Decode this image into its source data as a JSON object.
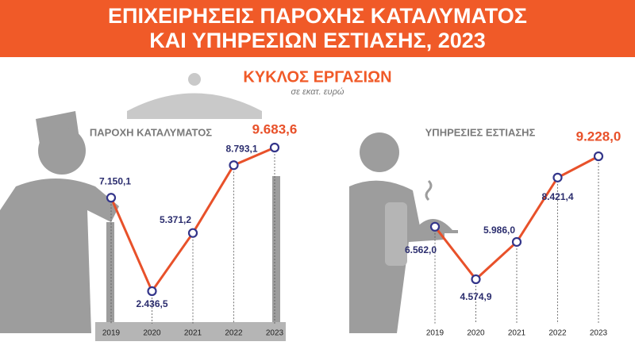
{
  "title": "ΕΠΙΧΕΙΡΗΣΕΙΣ ΠΑΡΟΧΗΣ ΚΑΤΑΛΥΜΑΤΟΣ ΚΑΙ ΥΠΗΡΕΣΙΩΝ ΕΣΤΙΑΣΗΣ, 2023",
  "subtitle": "ΚΥΚΛΟΣ ΕΡΓΑΣΙΩΝ",
  "unit": "σε εκατ. ευρώ",
  "chart_data": [
    {
      "type": "line",
      "title": "ΠΑΡΟΧΗ ΚΑΤΑΛΥΜΑΤΟΣ",
      "categories": [
        "2019",
        "2020",
        "2021",
        "2022",
        "2023"
      ],
      "values": [
        7150.1,
        2436.5,
        5371.2,
        8793.1,
        9683.6
      ],
      "value_labels": [
        "7.150,1",
        "2.436,5",
        "5.371,2",
        "8.793,1",
        "9.683,6"
      ],
      "color": "#e8512a"
    },
    {
      "type": "line",
      "title": "ΥΠΗΡΕΣΙΕΣ ΕΣΤΙΑΣΗΣ",
      "categories": [
        "2019",
        "2020",
        "2021",
        "2022",
        "2023"
      ],
      "values": [
        6562.0,
        4574.9,
        5986.0,
        8421.4,
        9228.0
      ],
      "value_labels": [
        "6.562,0",
        "4.574,9",
        "5.986,0",
        "8.421,4",
        "9.228,0"
      ],
      "color": "#e8512a"
    }
  ]
}
